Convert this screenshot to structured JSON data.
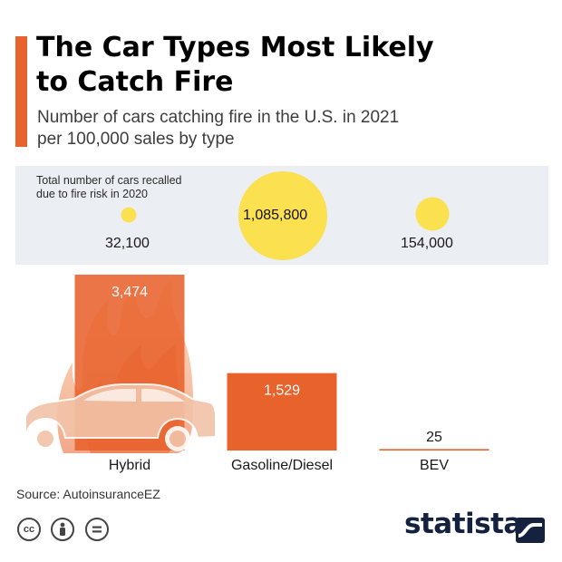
{
  "header": {
    "title_line1": "The Car Types Most Likely",
    "title_line2": "to Catch Fire",
    "subtitle_line1": "Number of cars catching fire in the U.S. in 2021",
    "subtitle_line2": "per 100,000 sales by type"
  },
  "recalls": {
    "note_line1": "Total number of cars recalled",
    "note_line2": "due to fire risk in 2020",
    "items": [
      {
        "category": "Hybrid",
        "label": "32,100",
        "value": 32100
      },
      {
        "category": "Gasoline/Diesel",
        "label": "1,085,800",
        "value": 1085800
      },
      {
        "category": "BEV",
        "label": "154,000",
        "value": 154000
      }
    ]
  },
  "chart_data": {
    "type": "bar",
    "title": "The Car Types Most Likely to Catch Fire",
    "subtitle": "Number of cars catching fire in the U.S. in 2021 per 100,000 sales by type",
    "categories": [
      "Hybrid",
      "Gasoline/Diesel",
      "BEV"
    ],
    "values": [
      3474,
      1529,
      25
    ],
    "value_labels": [
      "3,474",
      "1,529",
      "25"
    ],
    "xlabel": "",
    "ylabel": "",
    "ylim": [
      0,
      3474
    ],
    "grid": false,
    "legend": "none"
  },
  "footer": {
    "source": "Source: AutoinsuranceEZ",
    "brand": "statista",
    "license_icons": [
      "creative-commons-icon",
      "attribution-icon",
      "no-derivatives-icon"
    ]
  },
  "colors": {
    "accent": "#e8622c",
    "bar": "#e8622c",
    "bubble": "#fbe04f",
    "panel": "#ebeef3",
    "brand": "#14223f"
  }
}
